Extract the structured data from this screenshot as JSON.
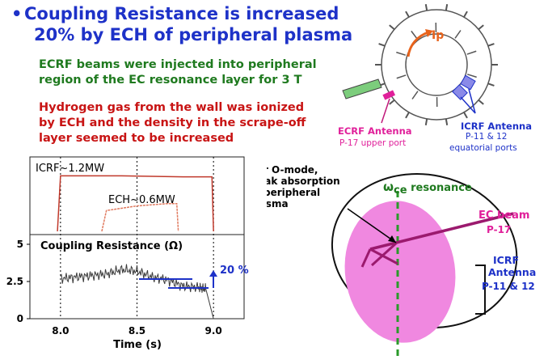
{
  "title": {
    "bullet": "•",
    "line1": "Coupling Resistance is increased",
    "line2": "20% by ECH of peripheral plasma"
  },
  "para_green": [
    "ECRF beams were injected into peripheral",
    "region of the EC resonance layer for 3 T"
  ],
  "para_red": [
    "Hydrogen gas from the wall was ionized",
    "by ECH and the density in the scrape-off",
    "layer seemed to be increased"
  ],
  "torus": {
    "ip_label": "Ip",
    "ecrf_antenna": {
      "title": "ECRF Antenna",
      "port": "P-17 upper port"
    },
    "icrf_antenna": {
      "title": "ICRF Antenna",
      "port1": "P-11 & 12",
      "port2": "equatorial ports"
    }
  },
  "chart_data": {
    "type": "line",
    "xlabel": "Time  (s)",
    "xticks": [
      "8.0",
      "8.5",
      "9.0"
    ],
    "xlim": [
      7.8,
      9.2
    ],
    "upper_panel": {
      "series": [
        {
          "name": "ICRF~1.2MW",
          "color": "#c0392b",
          "x": [
            7.98,
            8.0,
            8.4,
            8.8,
            8.99,
            9.0
          ],
          "y": [
            0,
            1.2,
            1.2,
            1.18,
            1.18,
            0
          ]
        },
        {
          "name": "ECH~0.6MW",
          "color": "#e07a5f",
          "x": [
            8.27,
            8.3,
            8.5,
            8.7,
            8.76,
            8.77
          ],
          "y": [
            0,
            0.45,
            0.55,
            0.6,
            0.6,
            0
          ]
        }
      ]
    },
    "lower_panel": {
      "ylabel": "Coupling Resistance (Ω)",
      "yticks": [
        "0",
        "2.5",
        "5"
      ],
      "ylim": [
        0,
        5
      ],
      "series": [
        {
          "name": "Coupling Resistance",
          "x": [
            8.0,
            8.1,
            8.2,
            8.3,
            8.4,
            8.5,
            8.6,
            8.7,
            8.8,
            8.9,
            8.95,
            9.0
          ],
          "y": [
            2.7,
            2.8,
            2.9,
            3.0,
            3.3,
            3.2,
            2.8,
            2.6,
            2.2,
            2.1,
            2.0,
            0
          ]
        }
      ],
      "annotation": "20 %"
    }
  },
  "cross_section": {
    "omode_text": [
      "For O-mode,",
      "weak absorption",
      "at peripheral",
      "plasma"
    ],
    "resonance_symbol": "ω",
    "resonance_sub": "ce",
    "resonance_label": " resonance",
    "ec_beam": [
      "EC beam",
      "P-17"
    ],
    "icrf_antenna": [
      "ICRF",
      "Antenna",
      "P-11 & 12"
    ]
  },
  "colors": {
    "title": "#1e32c8",
    "green": "#1f7a1f",
    "red": "#c81414",
    "magenta": "#c0187a",
    "blue": "#1e32c8",
    "plasma": "#f088e0"
  }
}
